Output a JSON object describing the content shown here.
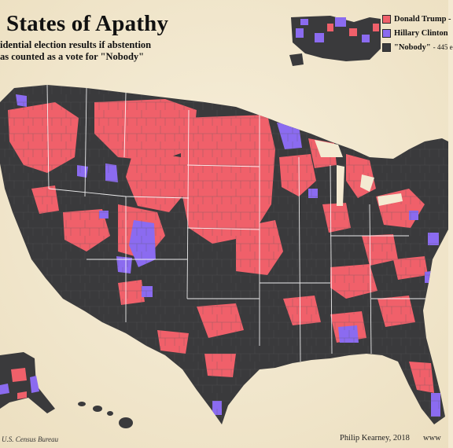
{
  "map": {
    "title": "States of Apathy",
    "subtitle_lines": [
      "idential election results if abstention",
      "as counted as a vote for \"Nobody\""
    ],
    "colors": {
      "background": "#f4ead2",
      "trump": "#f0606a",
      "clinton": "#8b6bf0",
      "nobody": "#3a3a3c",
      "border": "#ffffff"
    },
    "legend": [
      {
        "label": "Donald Trump -",
        "sub": "",
        "color": "#f0606a"
      },
      {
        "label": "Hillary Clinton",
        "sub": "",
        "color": "#8b6bf0"
      },
      {
        "label": "\"Nobody\"",
        "sub": "- 445 e",
        "color": "#3a3a3c"
      }
    ],
    "source": "U.S. Census Bureau",
    "credit": "Philip Kearney, 2018",
    "website": "www"
  }
}
